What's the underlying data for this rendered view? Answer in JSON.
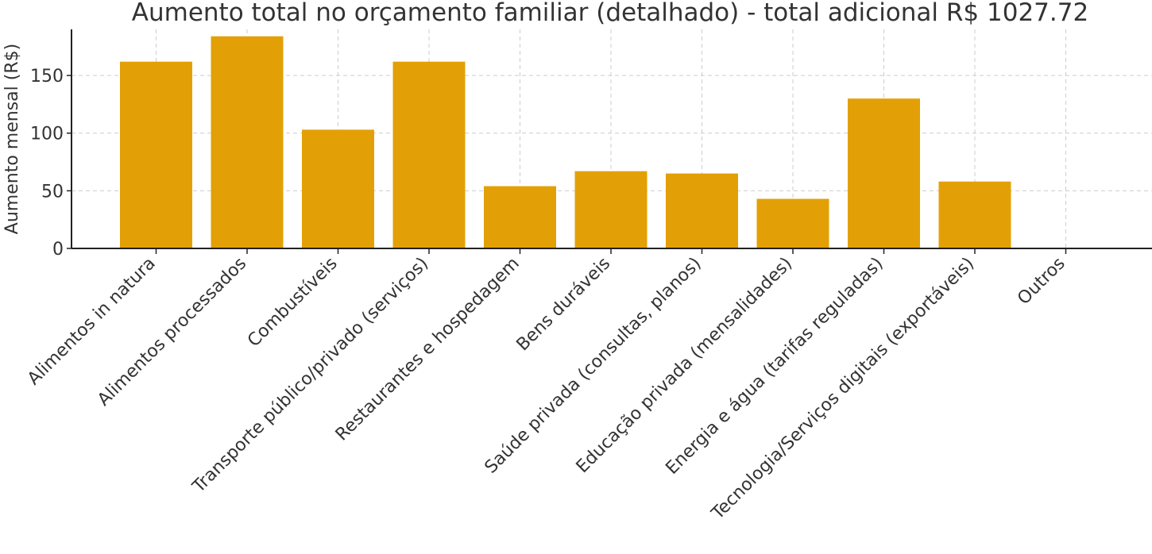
{
  "chart_data": {
    "type": "bar",
    "title": "Aumento total no orçamento familiar (detalhado) - total adicional R$ 1027.72",
    "xlabel": "",
    "ylabel": "Aumento mensal (R$)",
    "ylim": [
      0,
      190
    ],
    "yticks": [
      0,
      50,
      100,
      150
    ],
    "grid": true,
    "bar_color": "#E3A006",
    "categories": [
      "Alimentos in natura",
      "Alimentos processados",
      "Combustíveis",
      "Transporte público/privado (serviços)",
      "Restaurantes e hospedagem",
      "Bens duráveis",
      "Saúde privada (consultas, planos)",
      "Educação privada (mensalidades)",
      "Energia e água (tarifas reguladas)",
      "Tecnologia/Serviços digitais (exportáveis)",
      "Outros"
    ],
    "values": [
      162,
      184,
      103,
      162,
      54,
      67,
      65,
      43,
      130,
      58,
      0
    ]
  }
}
